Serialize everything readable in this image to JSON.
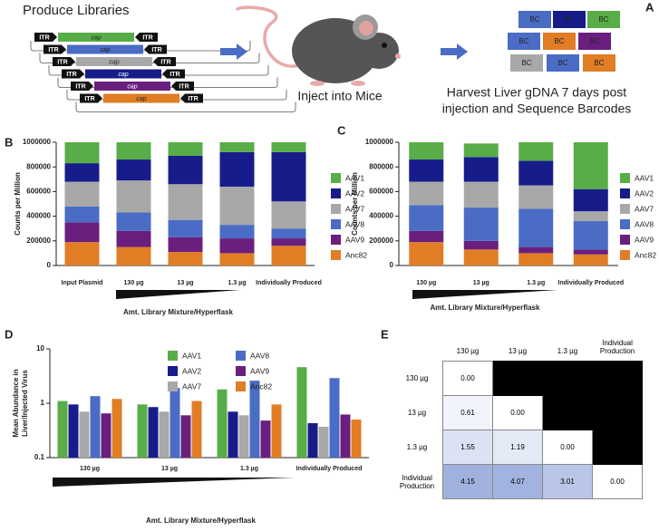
{
  "schematic": {
    "panel": "A",
    "title": "Produce Libraries",
    "itr": "ITR",
    "cap": "cap",
    "inject": "Inject into Mice",
    "barcode": "BC",
    "harvest": [
      "Harvest Liver gDNA 7 days post",
      "injection and Sequence Barcodes"
    ]
  },
  "chart_data": [
    {
      "panel": "B",
      "type": "stacked_bar",
      "categories": [
        "Input Plasmid",
        "130 µg",
        "13 µg",
        "1.3 µg",
        "Individually Produced"
      ],
      "series": [
        {
          "name": "AAV1",
          "color": "#58ad48",
          "values": [
            170000,
            140000,
            110000,
            80000,
            80000
          ]
        },
        {
          "name": "AAV2",
          "color": "#171c8a",
          "values": [
            150000,
            170000,
            230000,
            280000,
            400000
          ]
        },
        {
          "name": "AAV7",
          "color": "#a8a8a8",
          "values": [
            200000,
            260000,
            290000,
            310000,
            220000
          ]
        },
        {
          "name": "AAV8",
          "color": "#4a6cc4",
          "values": [
            130000,
            150000,
            140000,
            110000,
            80000
          ]
        },
        {
          "name": "AAV9",
          "color": "#6a1f7e",
          "values": [
            160000,
            130000,
            120000,
            120000,
            60000
          ]
        },
        {
          "name": "Anc82",
          "color": "#e07d25",
          "values": [
            190000,
            150000,
            110000,
            100000,
            160000
          ]
        }
      ],
      "ylim": [
        0,
        1000000
      ],
      "yticks": [
        0,
        200000,
        400000,
        600000,
        800000,
        1000000
      ],
      "ylabel": [
        "Counts per Million"
      ],
      "xlabel": "Amt. Library Mixture/Hyperflask",
      "legend": "right"
    },
    {
      "panel": "C",
      "type": "stacked_bar",
      "categories": [
        "130 µg",
        "13 µg",
        "1.3 µg",
        "Individually Produced"
      ],
      "series": [
        {
          "name": "AAV1",
          "color": "#58ad48",
          "values": [
            140000,
            110000,
            150000,
            380000
          ]
        },
        {
          "name": "AAV2",
          "color": "#171c8a",
          "values": [
            180000,
            200000,
            200000,
            180000
          ]
        },
        {
          "name": "AAV7",
          "color": "#a8a8a8",
          "values": [
            190000,
            210000,
            190000,
            80000
          ]
        },
        {
          "name": "AAV8",
          "color": "#4a6cc4",
          "values": [
            210000,
            270000,
            310000,
            230000
          ]
        },
        {
          "name": "AAV9",
          "color": "#6a1f7e",
          "values": [
            90000,
            70000,
            50000,
            40000
          ]
        },
        {
          "name": "Anc82",
          "color": "#e07d25",
          "values": [
            190000,
            130000,
            100000,
            90000
          ]
        }
      ],
      "ylim": [
        0,
        1000000
      ],
      "yticks": [
        0,
        200000,
        400000,
        600000,
        800000,
        1000000
      ],
      "ylabel": [
        "Counts per Million"
      ],
      "xlabel": "Amt. Library Mixture/Hyperflask",
      "legend": "right"
    },
    {
      "panel": "D",
      "type": "bar",
      "log": true,
      "categories": [
        "130 µg",
        "13 µg",
        "1.3 µg",
        "Individually Produced"
      ],
      "series": [
        {
          "name": "AAV1",
          "color": "#58ad48",
          "values": [
            1.1,
            0.95,
            1.8,
            4.6
          ]
        },
        {
          "name": "AAV2",
          "color": "#171c8a",
          "values": [
            0.95,
            0.85,
            0.7,
            0.43
          ]
        },
        {
          "name": "AAV7",
          "color": "#a8a8a8",
          "values": [
            0.7,
            0.7,
            0.6,
            0.37
          ]
        },
        {
          "name": "AAV8",
          "color": "#4a6cc4",
          "values": [
            1.35,
            1.9,
            2.6,
            2.9
          ]
        },
        {
          "name": "AAV9",
          "color": "#6a1f7e",
          "values": [
            0.65,
            0.6,
            0.48,
            0.62
          ]
        },
        {
          "name": "Anc82",
          "color": "#e07d25",
          "values": [
            1.2,
            1.1,
            0.95,
            0.5
          ]
        }
      ],
      "ylim": [
        0.1,
        10
      ],
      "yticks": [
        0.1,
        1,
        10
      ],
      "ylabel": [
        "Mean Abundance in",
        "Liver/Injected Virus"
      ],
      "xlabel": "Amt. Library Mixture/Hyperflask",
      "legend": "top"
    }
  ],
  "heatmap": {
    "panel": "E",
    "columns": [
      "130 µg",
      "13 µg",
      "1.3 µg",
      "Individual Production"
    ],
    "rows": [
      "130 µg",
      "13 µg",
      "1.3 µg",
      "Individual Production"
    ],
    "cells": [
      [
        "0.00",
        null,
        null,
        null
      ],
      [
        "0.61",
        "0.00",
        null,
        null
      ],
      [
        "1.55",
        "1.19",
        "0.00",
        null
      ],
      [
        "4.15",
        "4.07",
        "3.01",
        "0.00"
      ]
    ]
  }
}
